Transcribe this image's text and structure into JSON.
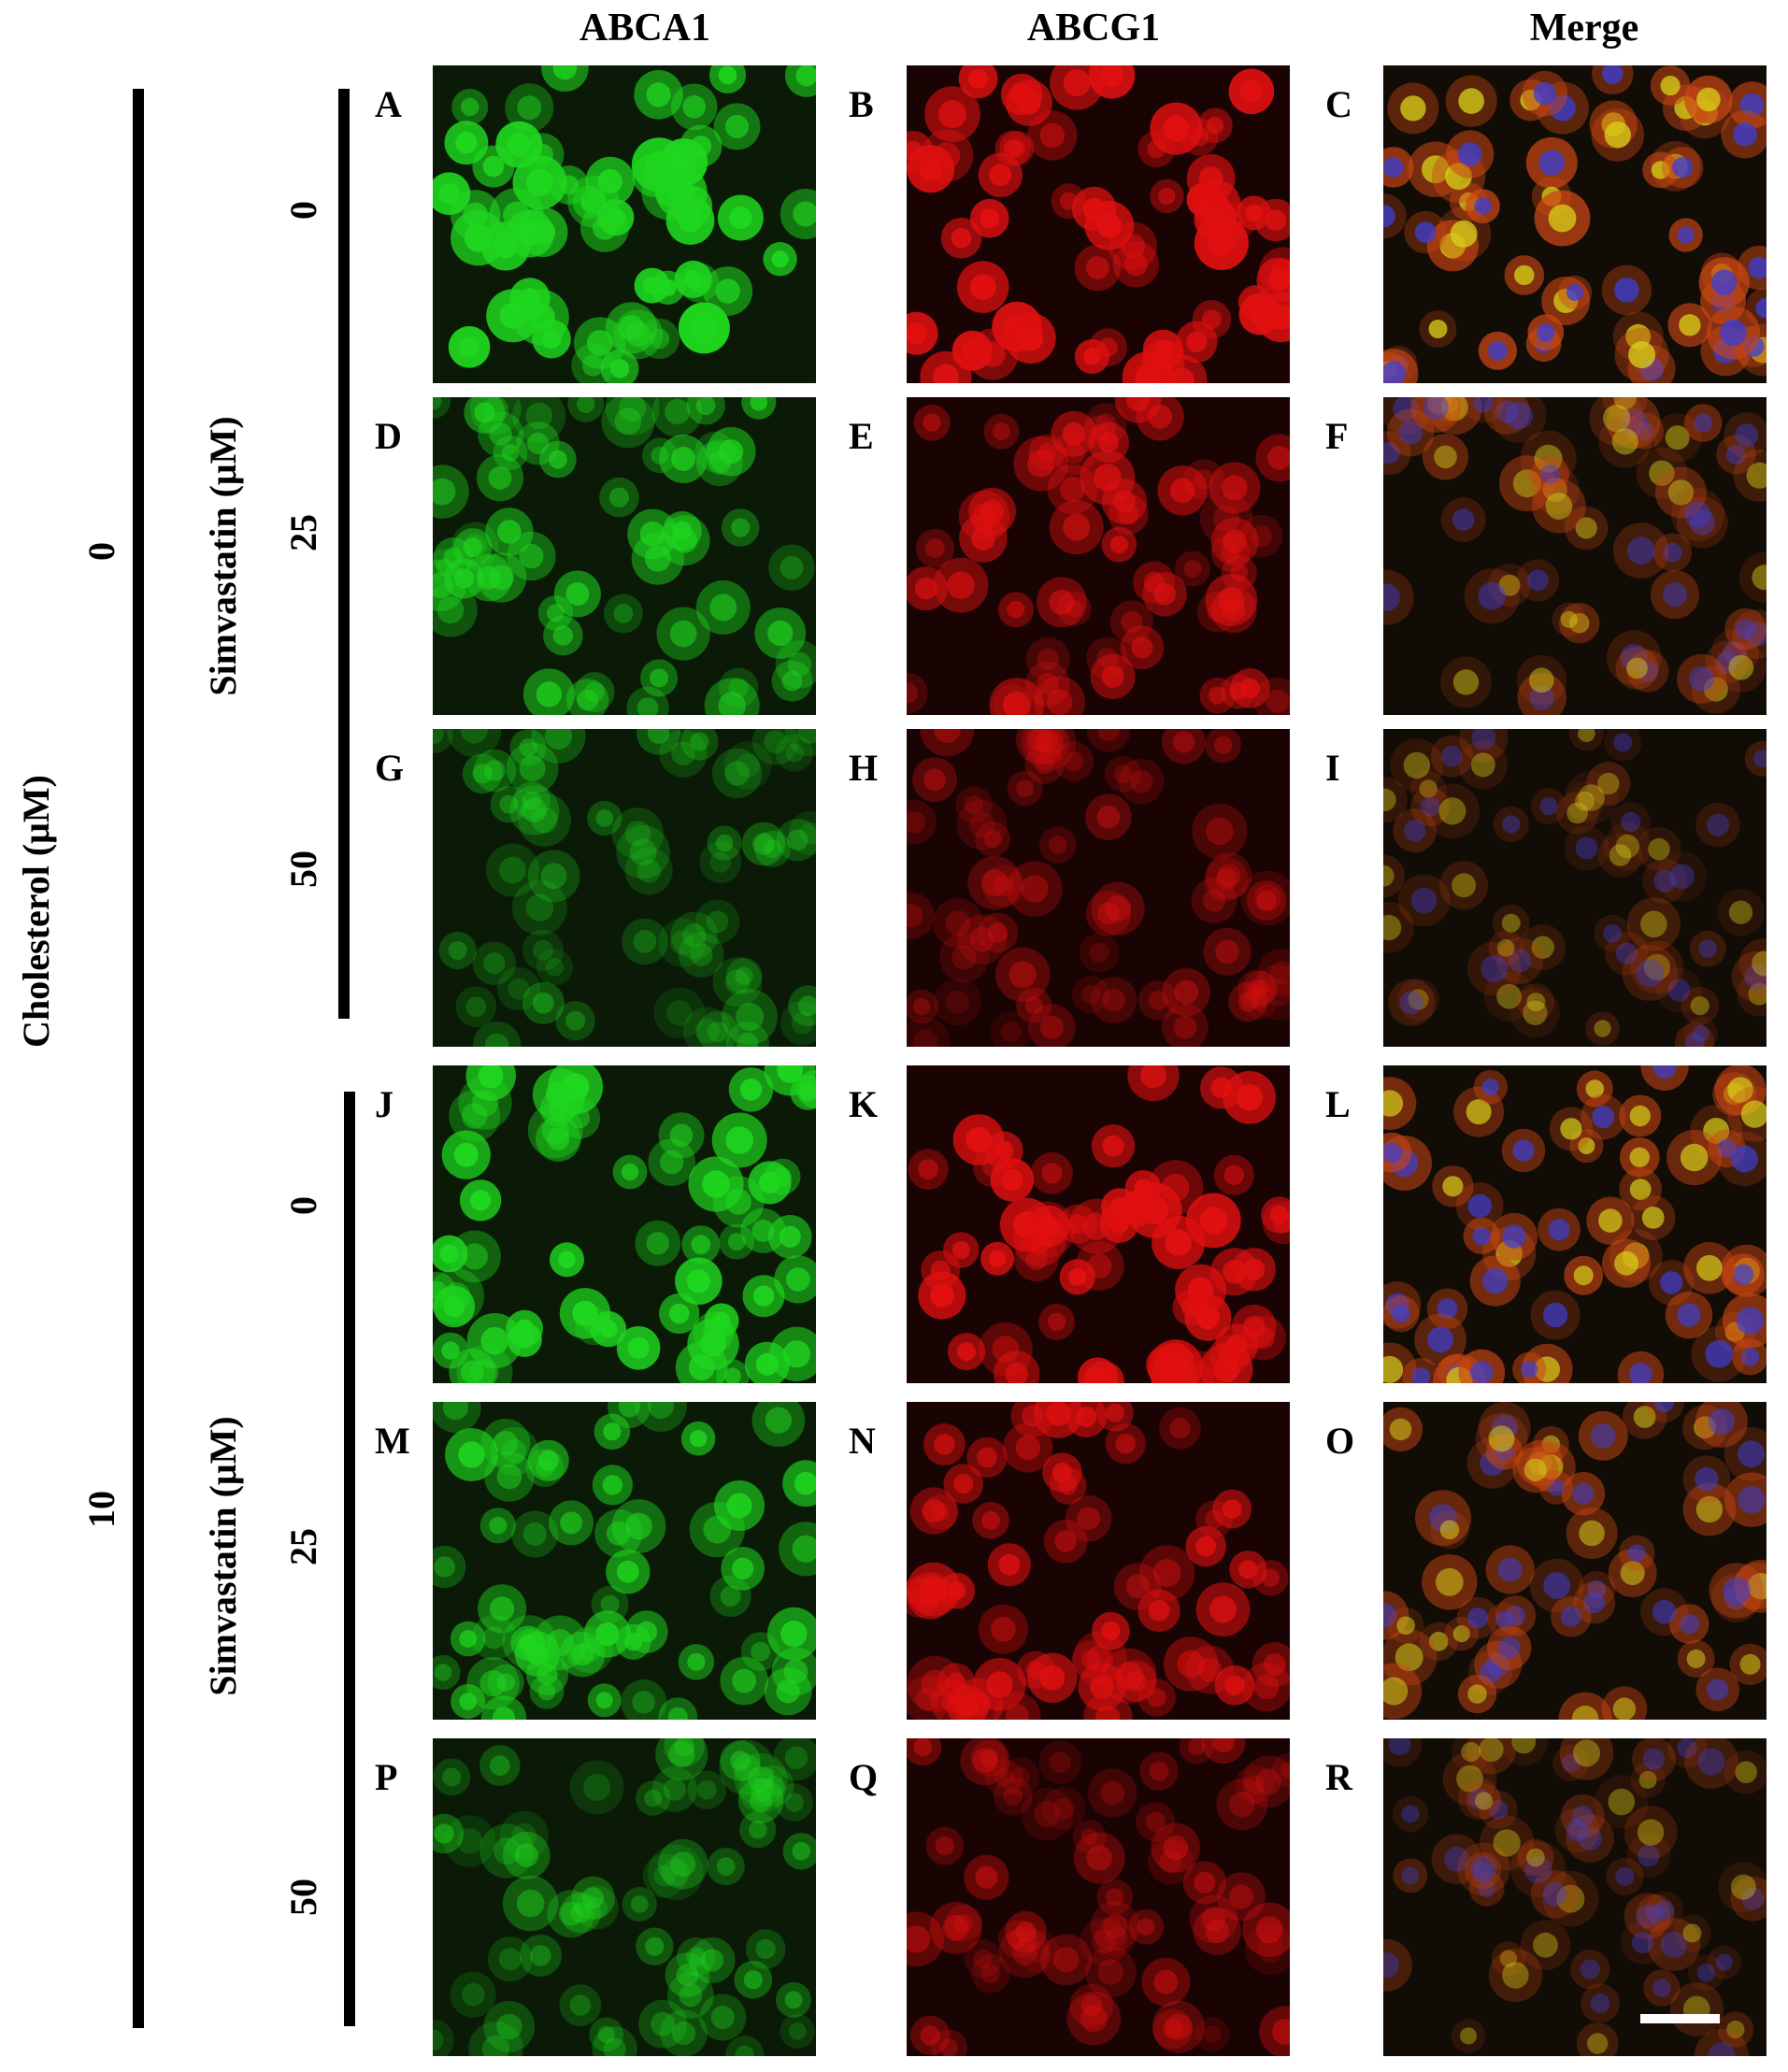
{
  "column_headers": [
    "ABCA1",
    "ABCG1",
    "Merge"
  ],
  "outer_axis_label": "Cholesterol (μM)",
  "outer_levels": [
    "0",
    "10"
  ],
  "inner_axis_label": "Simvastatin (μM)",
  "inner_levels": [
    "0",
    "25",
    "50",
    "0",
    "25",
    "50"
  ],
  "panel_letters": [
    "A",
    "B",
    "C",
    "D",
    "E",
    "F",
    "G",
    "H",
    "I",
    "J",
    "K",
    "L",
    "M",
    "N",
    "O",
    "P",
    "Q",
    "R"
  ],
  "channel_colors": {
    "abca1": "#1fd61f",
    "abcg1": "#e01010",
    "merge_nucleus": "#3a3fd8",
    "merge_cyto": "#d8d41a"
  },
  "row_intensity": [
    1.0,
    0.6,
    0.35,
    0.9,
    0.7,
    0.4
  ]
}
